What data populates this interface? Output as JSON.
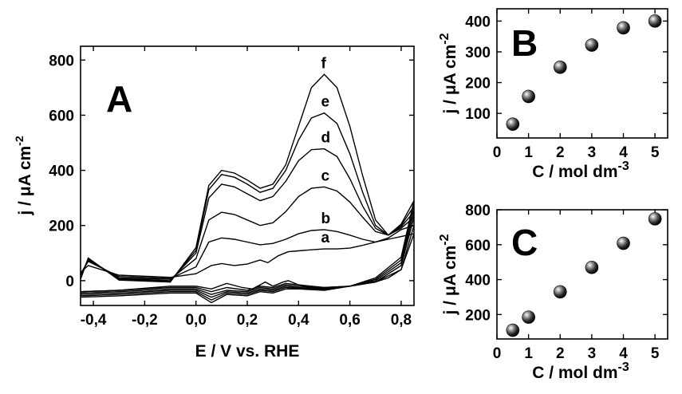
{
  "chart_data": [
    {
      "panel": "A",
      "type": "line",
      "xlabel": "E / V vs. RHE",
      "ylabel": "j / μA cm-2",
      "xlim": [
        -0.45,
        0.85
      ],
      "ylim": [
        -90,
        850
      ],
      "xticks": [
        -0.4,
        -0.2,
        0.0,
        0.2,
        0.4,
        0.6,
        0.8
      ],
      "xtick_labels": [
        "-0,4",
        "-0,2",
        "0,0",
        "0,2",
        "0,4",
        "0,6",
        "0,8"
      ],
      "yticks": [
        0,
        200,
        400,
        600,
        800
      ],
      "ytick_labels": [
        "0",
        "200",
        "400",
        "600",
        "800"
      ],
      "grid": false,
      "series": [
        {
          "name": "a",
          "forward": {
            "x": [
              -0.45,
              -0.42,
              -0.3,
              -0.1,
              0.0,
              0.06,
              0.1,
              0.15,
              0.2,
              0.25,
              0.28,
              0.32,
              0.36,
              0.4,
              0.45,
              0.5,
              0.55,
              0.6,
              0.65,
              0.7,
              0.75,
              0.8,
              0.85
            ],
            "y": [
              30,
              55,
              20,
              12,
              25,
              55,
              62,
              55,
              60,
              75,
              65,
              90,
              105,
              108,
              112,
              115,
              115,
              118,
              128,
              140,
              150,
              160,
              170
            ]
          },
          "reverse": {
            "x": [
              0.85,
              0.8,
              0.75,
              0.7,
              0.6,
              0.5,
              0.45,
              0.4,
              0.36,
              0.34,
              0.3,
              0.27,
              0.25,
              0.22,
              0.18,
              0.12,
              0.06,
              0.0,
              -0.1,
              -0.3,
              -0.45
            ],
            "y": [
              170,
              40,
              10,
              -5,
              -20,
              -25,
              -25,
              -15,
              0,
              -5,
              -20,
              -5,
              -15,
              -30,
              -25,
              -10,
              -30,
              -20,
              -20,
              -35,
              -40
            ]
          }
        },
        {
          "name": "b",
          "forward": {
            "x": [
              -0.45,
              -0.42,
              -0.3,
              -0.1,
              0.0,
              0.05,
              0.1,
              0.15,
              0.2,
              0.25,
              0.3,
              0.35,
              0.4,
              0.45,
              0.5,
              0.55,
              0.6,
              0.65,
              0.7,
              0.75,
              0.8,
              0.85
            ],
            "y": [
              25,
              70,
              15,
              8,
              50,
              140,
              155,
              150,
              140,
              130,
              135,
              150,
              170,
              182,
              185,
              178,
              165,
              150,
              140,
              155,
              185,
              200
            ]
          },
          "reverse": {
            "x": [
              0.85,
              0.8,
              0.7,
              0.6,
              0.5,
              0.4,
              0.35,
              0.3,
              0.25,
              0.2,
              0.12,
              0.06,
              0.0,
              -0.1,
              -0.3,
              -0.45
            ],
            "y": [
              200,
              40,
              -5,
              -20,
              -25,
              -15,
              -10,
              -25,
              -20,
              -35,
              -25,
              -40,
              -25,
              -25,
              -35,
              -40
            ]
          }
        },
        {
          "name": "c",
          "forward": {
            "x": [
              -0.45,
              -0.42,
              -0.3,
              -0.1,
              0.0,
              0.05,
              0.1,
              0.15,
              0.2,
              0.25,
              0.3,
              0.35,
              0.4,
              0.45,
              0.5,
              0.55,
              0.6,
              0.65,
              0.7,
              0.75,
              0.8,
              0.85
            ],
            "y": [
              20,
              75,
              10,
              5,
              80,
              220,
              248,
              240,
              220,
              200,
              210,
              250,
              305,
              335,
              340,
              325,
              285,
              230,
              178,
              165,
              190,
              230
            ]
          },
          "reverse": {
            "x": [
              0.85,
              0.8,
              0.7,
              0.6,
              0.5,
              0.4,
              0.35,
              0.3,
              0.25,
              0.2,
              0.12,
              0.06,
              0.0,
              -0.1,
              -0.3,
              -0.45
            ],
            "y": [
              230,
              55,
              -5,
              -20,
              -28,
              -20,
              -15,
              -30,
              -25,
              -40,
              -35,
              -50,
              -30,
              -30,
              -40,
              -45
            ]
          }
        },
        {
          "name": "d",
          "forward": {
            "x": [
              -0.45,
              -0.42,
              -0.3,
              -0.1,
              0.0,
              0.05,
              0.1,
              0.15,
              0.2,
              0.25,
              0.3,
              0.35,
              0.4,
              0.45,
              0.5,
              0.55,
              0.6,
              0.65,
              0.7,
              0.75,
              0.8,
              0.85
            ],
            "y": [
              15,
              78,
              8,
              0,
              100,
              300,
              350,
              340,
              315,
              290,
              305,
              360,
              435,
              475,
              478,
              450,
              370,
              270,
              190,
              165,
              195,
              250
            ]
          },
          "reverse": {
            "x": [
              0.85,
              0.8,
              0.7,
              0.6,
              0.5,
              0.4,
              0.35,
              0.3,
              0.25,
              0.2,
              0.12,
              0.06,
              0.0,
              -0.1,
              -0.3,
              -0.45
            ],
            "y": [
              250,
              65,
              0,
              -20,
              -30,
              -25,
              -20,
              -35,
              -30,
              -45,
              -40,
              -60,
              -35,
              -35,
              -45,
              -50
            ]
          }
        },
        {
          "name": "e",
          "forward": {
            "x": [
              -0.45,
              -0.42,
              -0.3,
              -0.1,
              0.0,
              0.05,
              0.1,
              0.15,
              0.2,
              0.25,
              0.3,
              0.35,
              0.4,
              0.45,
              0.5,
              0.55,
              0.6,
              0.65,
              0.7,
              0.75,
              0.8,
              0.85
            ],
            "y": [
              10,
              80,
              5,
              -2,
              110,
              330,
              385,
              375,
              350,
              320,
              335,
              400,
              510,
              590,
              608,
              570,
              460,
              320,
              200,
              165,
              200,
              270
            ]
          },
          "reverse": {
            "x": [
              0.85,
              0.8,
              0.7,
              0.6,
              0.5,
              0.4,
              0.35,
              0.3,
              0.25,
              0.2,
              0.12,
              0.06,
              0.0,
              -0.1,
              -0.3,
              -0.45
            ],
            "y": [
              270,
              75,
              5,
              -20,
              -32,
              -28,
              -25,
              -40,
              -35,
              -50,
              -45,
              -70,
              -40,
              -40,
              -50,
              -55
            ]
          }
        },
        {
          "name": "f",
          "forward": {
            "x": [
              -0.45,
              -0.42,
              -0.3,
              -0.1,
              0.0,
              0.05,
              0.1,
              0.15,
              0.2,
              0.25,
              0.3,
              0.35,
              0.4,
              0.45,
              0.5,
              0.55,
              0.6,
              0.65,
              0.7,
              0.75,
              0.8,
              0.85
            ],
            "y": [
              5,
              82,
              2,
              -5,
              120,
              345,
              400,
              390,
              365,
              335,
              350,
              420,
              560,
              700,
              748,
              700,
              560,
              380,
              220,
              165,
              205,
              290
            ]
          },
          "reverse": {
            "x": [
              0.85,
              0.8,
              0.7,
              0.6,
              0.5,
              0.4,
              0.35,
              0.3,
              0.25,
              0.2,
              0.12,
              0.06,
              0.0,
              -0.1,
              -0.3,
              -0.45
            ],
            "y": [
              290,
              85,
              10,
              -20,
              -35,
              -30,
              -30,
              -45,
              -40,
              -55,
              -50,
              -80,
              -45,
              -45,
              -55,
              -60
            ]
          }
        }
      ]
    },
    {
      "panel": "B",
      "type": "scatter",
      "xlabel": "C / mol dm-3",
      "ylabel": "j / μA cm-2",
      "xlim": [
        0,
        5.4
      ],
      "ylim": [
        20,
        440
      ],
      "xticks": [
        0,
        1,
        2,
        3,
        4,
        5
      ],
      "yticks": [
        100,
        200,
        300,
        400
      ],
      "grid": false,
      "x": [
        0.5,
        1,
        2,
        3,
        4,
        5
      ],
      "y": [
        65,
        155,
        250,
        322,
        378,
        400
      ]
    },
    {
      "panel": "C",
      "type": "scatter",
      "xlabel": "C / mol dm-3",
      "ylabel": "j / μA cm-2",
      "xlim": [
        0,
        5.4
      ],
      "ylim": [
        60,
        800
      ],
      "xticks": [
        0,
        1,
        2,
        3,
        4,
        5
      ],
      "yticks": [
        200,
        400,
        600,
        800
      ],
      "grid": false,
      "x": [
        0.5,
        1,
        2,
        3,
        4,
        5
      ],
      "y": [
        110,
        185,
        330,
        470,
        608,
        748
      ]
    }
  ]
}
